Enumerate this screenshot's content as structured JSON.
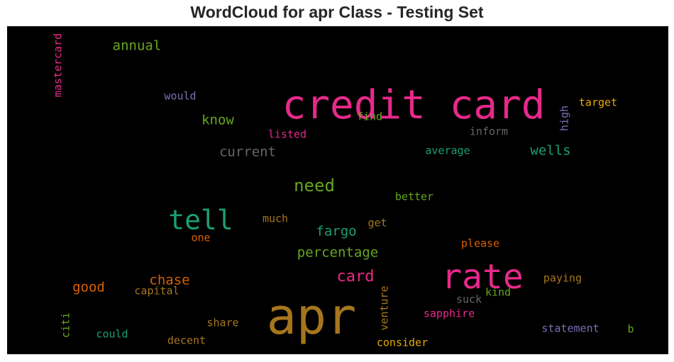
{
  "chart_data": {
    "type": "wordcloud",
    "title": "WordCloud for apr Class - Testing Set",
    "background": "#000000",
    "words": [
      {
        "text": "credit card",
        "weight": 1.0,
        "color": "#e7298a",
        "vertical": false
      },
      {
        "text": "apr",
        "weight": 0.98,
        "color": "#a6761d",
        "vertical": false
      },
      {
        "text": "rate",
        "weight": 0.72,
        "color": "#e7298a",
        "vertical": false
      },
      {
        "text": "tell",
        "weight": 0.55,
        "color": "#1b9e77",
        "vertical": false
      },
      {
        "text": "need",
        "weight": 0.4,
        "color": "#66a61e",
        "vertical": false
      },
      {
        "text": "card",
        "weight": 0.36,
        "color": "#e7298a",
        "vertical": false
      },
      {
        "text": "current",
        "weight": 0.32,
        "color": "#666666",
        "vertical": false
      },
      {
        "text": "know",
        "weight": 0.3,
        "color": "#66a61e",
        "vertical": false
      },
      {
        "text": "wells",
        "weight": 0.31,
        "color": "#1b9e77",
        "vertical": false
      },
      {
        "text": "chase",
        "weight": 0.31,
        "color": "#d95f02",
        "vertical": false
      },
      {
        "text": "good",
        "weight": 0.31,
        "color": "#d95f02",
        "vertical": false
      },
      {
        "text": "percentage",
        "weight": 0.3,
        "color": "#66a61e",
        "vertical": false
      },
      {
        "text": "fargo",
        "weight": 0.29,
        "color": "#1b9e77",
        "vertical": false
      },
      {
        "text": "annual",
        "weight": 0.29,
        "color": "#66a61e",
        "vertical": false
      },
      {
        "text": "mastercard",
        "weight": 0.25,
        "color": "#e7298a",
        "vertical": true
      },
      {
        "text": "would",
        "weight": 0.24,
        "color": "#7570b3",
        "vertical": false
      },
      {
        "text": "find",
        "weight": 0.23,
        "color": "#66a61e",
        "vertical": false
      },
      {
        "text": "listed",
        "weight": 0.24,
        "color": "#e7298a",
        "vertical": false
      },
      {
        "text": "inform",
        "weight": 0.24,
        "color": "#666666",
        "vertical": false
      },
      {
        "text": "average",
        "weight": 0.24,
        "color": "#1b9e77",
        "vertical": false
      },
      {
        "text": "high",
        "weight": 0.24,
        "color": "#7570b3",
        "vertical": true
      },
      {
        "text": "target",
        "weight": 0.24,
        "color": "#e6ab02",
        "vertical": false
      },
      {
        "text": "better",
        "weight": 0.24,
        "color": "#66a61e",
        "vertical": false
      },
      {
        "text": "much",
        "weight": 0.24,
        "color": "#a6761d",
        "vertical": false
      },
      {
        "text": "get",
        "weight": 0.24,
        "color": "#a6761d",
        "vertical": false
      },
      {
        "text": "one",
        "weight": 0.23,
        "color": "#d95f02",
        "vertical": false
      },
      {
        "text": "please",
        "weight": 0.24,
        "color": "#d95f02",
        "vertical": false
      },
      {
        "text": "paying",
        "weight": 0.24,
        "color": "#a6761d",
        "vertical": false
      },
      {
        "text": "capital",
        "weight": 0.24,
        "color": "#a6761d",
        "vertical": false
      },
      {
        "text": "kind",
        "weight": 0.24,
        "color": "#66a61e",
        "vertical": false
      },
      {
        "text": "suck",
        "weight": 0.24,
        "color": "#666666",
        "vertical": false
      },
      {
        "text": "venture",
        "weight": 0.24,
        "color": "#a6761d",
        "vertical": true
      },
      {
        "text": "sapphire",
        "weight": 0.24,
        "color": "#e7298a",
        "vertical": false
      },
      {
        "text": "share",
        "weight": 0.24,
        "color": "#a6761d",
        "vertical": false
      },
      {
        "text": "citi",
        "weight": 0.24,
        "color": "#66a61e",
        "vertical": true
      },
      {
        "text": "could",
        "weight": 0.24,
        "color": "#1b9e77",
        "vertical": false
      },
      {
        "text": "decent",
        "weight": 0.24,
        "color": "#a6761d",
        "vertical": false
      },
      {
        "text": "consider",
        "weight": 0.24,
        "color": "#e6ab02",
        "vertical": false
      },
      {
        "text": "statement",
        "weight": 0.24,
        "color": "#7570b3",
        "vertical": false
      },
      {
        "text": "b",
        "weight": 0.24,
        "color": "#66a61e",
        "vertical": false
      }
    ]
  }
}
